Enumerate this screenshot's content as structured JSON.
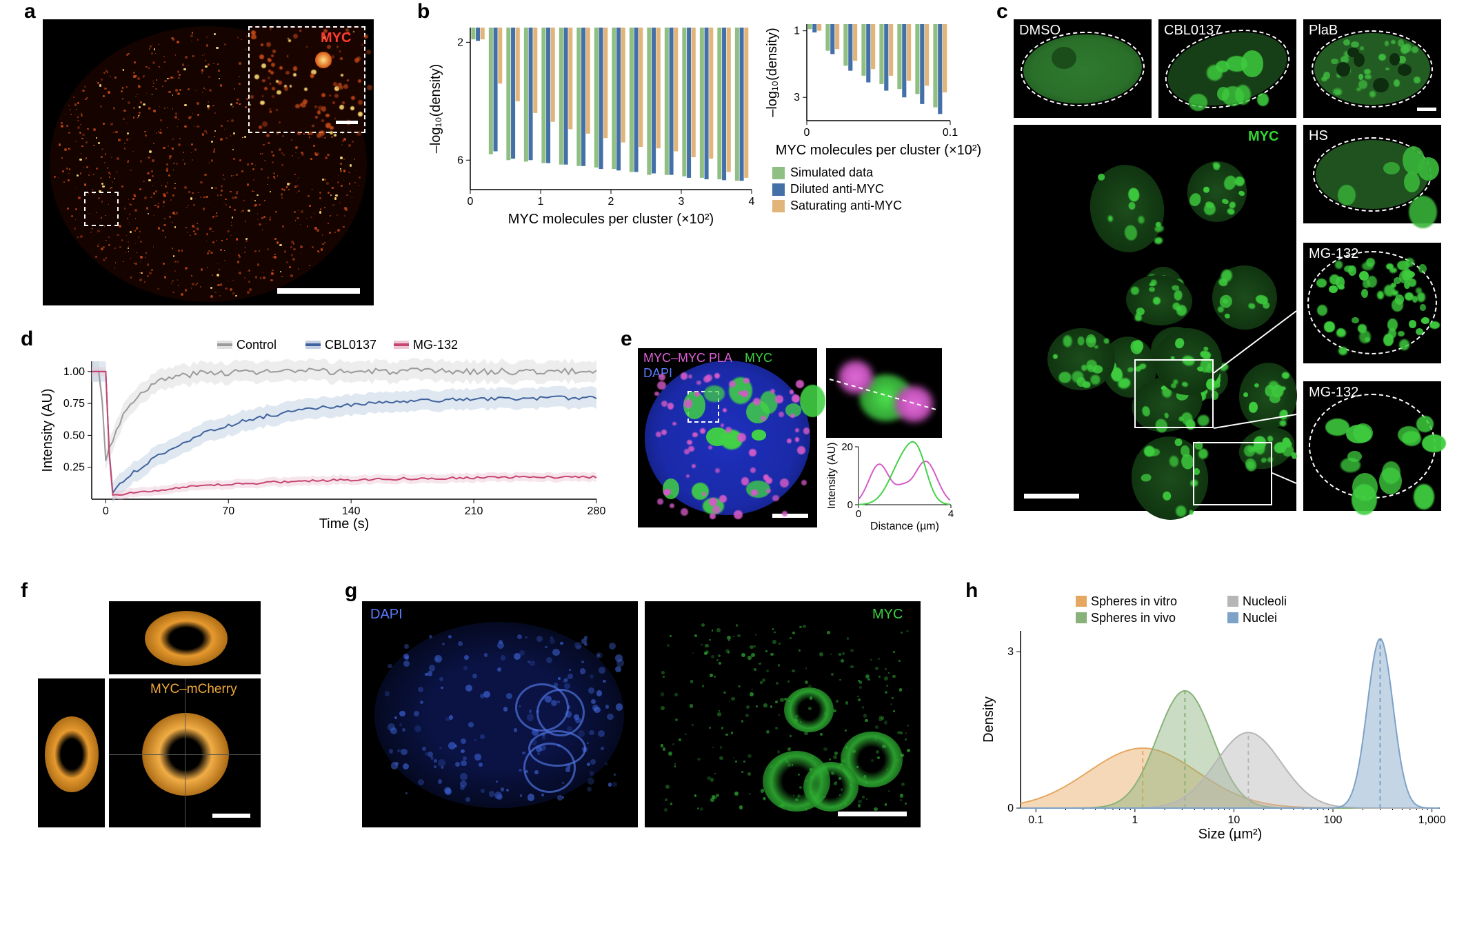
{
  "labels": {
    "a": "a",
    "b": "b",
    "c": "c",
    "d": "d",
    "e": "e",
    "f": "f",
    "g": "g",
    "h": "h"
  },
  "panel_a": {
    "inset_label": "MYC",
    "bg": "#000000",
    "signal_color": "#c94a18",
    "bright_color": "#f2d070"
  },
  "panel_b": {
    "left": {
      "ylabel": "–log₁₀(density)",
      "xlabel": "MYC molecules per cluster (×10²)",
      "yticks": [
        "2",
        "6"
      ],
      "xticks": [
        "0",
        "1",
        "2",
        "3",
        "4"
      ],
      "categories": [
        0.25,
        0.5,
        0.75,
        1.0,
        1.25,
        1.5,
        1.75,
        2.0,
        2.25,
        2.5,
        2.75,
        3.0,
        3.25,
        3.5,
        3.75,
        4.0
      ],
      "series": {
        "simulated": {
          "color": "#8fbf82",
          "values": [
            1.9,
            5.8,
            6.0,
            6.05,
            6.1,
            6.15,
            6.2,
            6.25,
            6.3,
            6.4,
            6.5,
            6.5,
            6.55,
            6.6,
            6.65,
            6.7
          ]
        },
        "diluted": {
          "color": "#4470a8",
          "values": [
            1.95,
            5.7,
            5.95,
            6.0,
            6.1,
            6.15,
            6.2,
            6.3,
            6.35,
            6.4,
            6.45,
            6.5,
            6.6,
            6.65,
            6.68,
            6.7
          ]
        },
        "saturating": {
          "color": "#e1b57a",
          "values": [
            1.9,
            3.4,
            4.0,
            4.4,
            4.7,
            4.95,
            5.1,
            5.25,
            5.4,
            5.55,
            5.6,
            5.7,
            5.9,
            5.95,
            6.4,
            6.6
          ]
        }
      }
    },
    "right": {
      "ylabel": "–log₁₀(density)",
      "xlabel": "MYC molecules\nper cluster (×10²)",
      "yticks": [
        "1",
        "3"
      ],
      "xticks": [
        "0",
        "0.1"
      ],
      "categories": [
        0.0125,
        0.025,
        0.0375,
        0.05,
        0.0625,
        0.075,
        0.0875,
        0.1
      ],
      "series": {
        "simulated": {
          "color": "#8fbf82",
          "values": [
            0.95,
            1.6,
            2.05,
            2.35,
            2.6,
            2.75,
            2.9,
            3.3
          ]
        },
        "diluted": {
          "color": "#4470a8",
          "values": [
            1.05,
            1.7,
            2.2,
            2.55,
            2.8,
            3.0,
            3.2,
            3.5
          ]
        },
        "saturating": {
          "color": "#e1b57a",
          "values": [
            1.0,
            1.55,
            1.9,
            2.15,
            2.35,
            2.5,
            2.65,
            2.85
          ]
        }
      }
    },
    "legend": [
      {
        "label": "Simulated data",
        "color": "#8fbf82"
      },
      {
        "label": "Diluted anti-MYC",
        "color": "#4470a8"
      },
      {
        "label": "Saturating anti-MYC",
        "color": "#e1b57a"
      }
    ]
  },
  "panel_c": {
    "main_label": "MYC",
    "green": "#3ecb3e",
    "dark_green": "#145a14",
    "cells": {
      "dmso": "DMSO",
      "cbl": "CBL0137",
      "plab": "PlaB",
      "hs": "HS",
      "mg1": "MG-132",
      "mg2": "MG-132"
    }
  },
  "panel_d": {
    "ylabel": "Intensity (AU)",
    "xlabel": "Time (s)",
    "yticks": [
      "0.25",
      "0.50",
      "0.75",
      "1.00"
    ],
    "xticks": [
      "0",
      "70",
      "140",
      "210",
      "280"
    ],
    "legend": [
      {
        "label": "Control",
        "color": "#9a9a9a"
      },
      {
        "label": "CBL0137",
        "color": "#40639e"
      },
      {
        "label": "MG-132",
        "color": "#c7456f"
      }
    ],
    "series": {
      "control": {
        "color": "#9a9a9a",
        "band": "#d6d6d6"
      },
      "cbl": {
        "color": "#40639e",
        "band": "#b9cadf"
      },
      "mg": {
        "color": "#c7456f",
        "band": "#ecc6d4"
      }
    }
  },
  "panel_e": {
    "title_magenta": "MYC–MYC PLA",
    "title_green": "MYC",
    "title_blue": "DAPI",
    "magenta": "#d45bc8",
    "green": "#42d246",
    "blue": "#2639c6",
    "chart": {
      "ylabel": "Intensity (AU)",
      "xlabel": "Distance (µm)",
      "yticks": [
        "0",
        "20"
      ],
      "xticks": [
        "0",
        "4"
      ]
    }
  },
  "panel_f": {
    "label": "MYC–mCherry",
    "color": "#e79a2e"
  },
  "panel_g": {
    "dapi": "DAPI",
    "dapi_color": "#3e6fe0",
    "myc": "MYC",
    "myc_color": "#3bcf40"
  },
  "panel_h": {
    "ylabel": "Density",
    "xlabel": "Size (µm²)",
    "yticks": [
      "0",
      "3"
    ],
    "xticks": [
      "0.1",
      "1",
      "10",
      "100",
      "1,000"
    ],
    "legend": [
      {
        "label": "Spheres in vitro",
        "color": "#e6a861"
      },
      {
        "label": "Nucleoli",
        "color": "#b6b6b6"
      },
      {
        "label": "Spheres in vivo",
        "color": "#89b27a"
      },
      {
        "label": "Nuclei",
        "color": "#7ca2c7"
      }
    ],
    "modes": {
      "vitro": 1.2,
      "vivo": 3.2,
      "nucleoli": 14,
      "nuclei": 300
    }
  }
}
